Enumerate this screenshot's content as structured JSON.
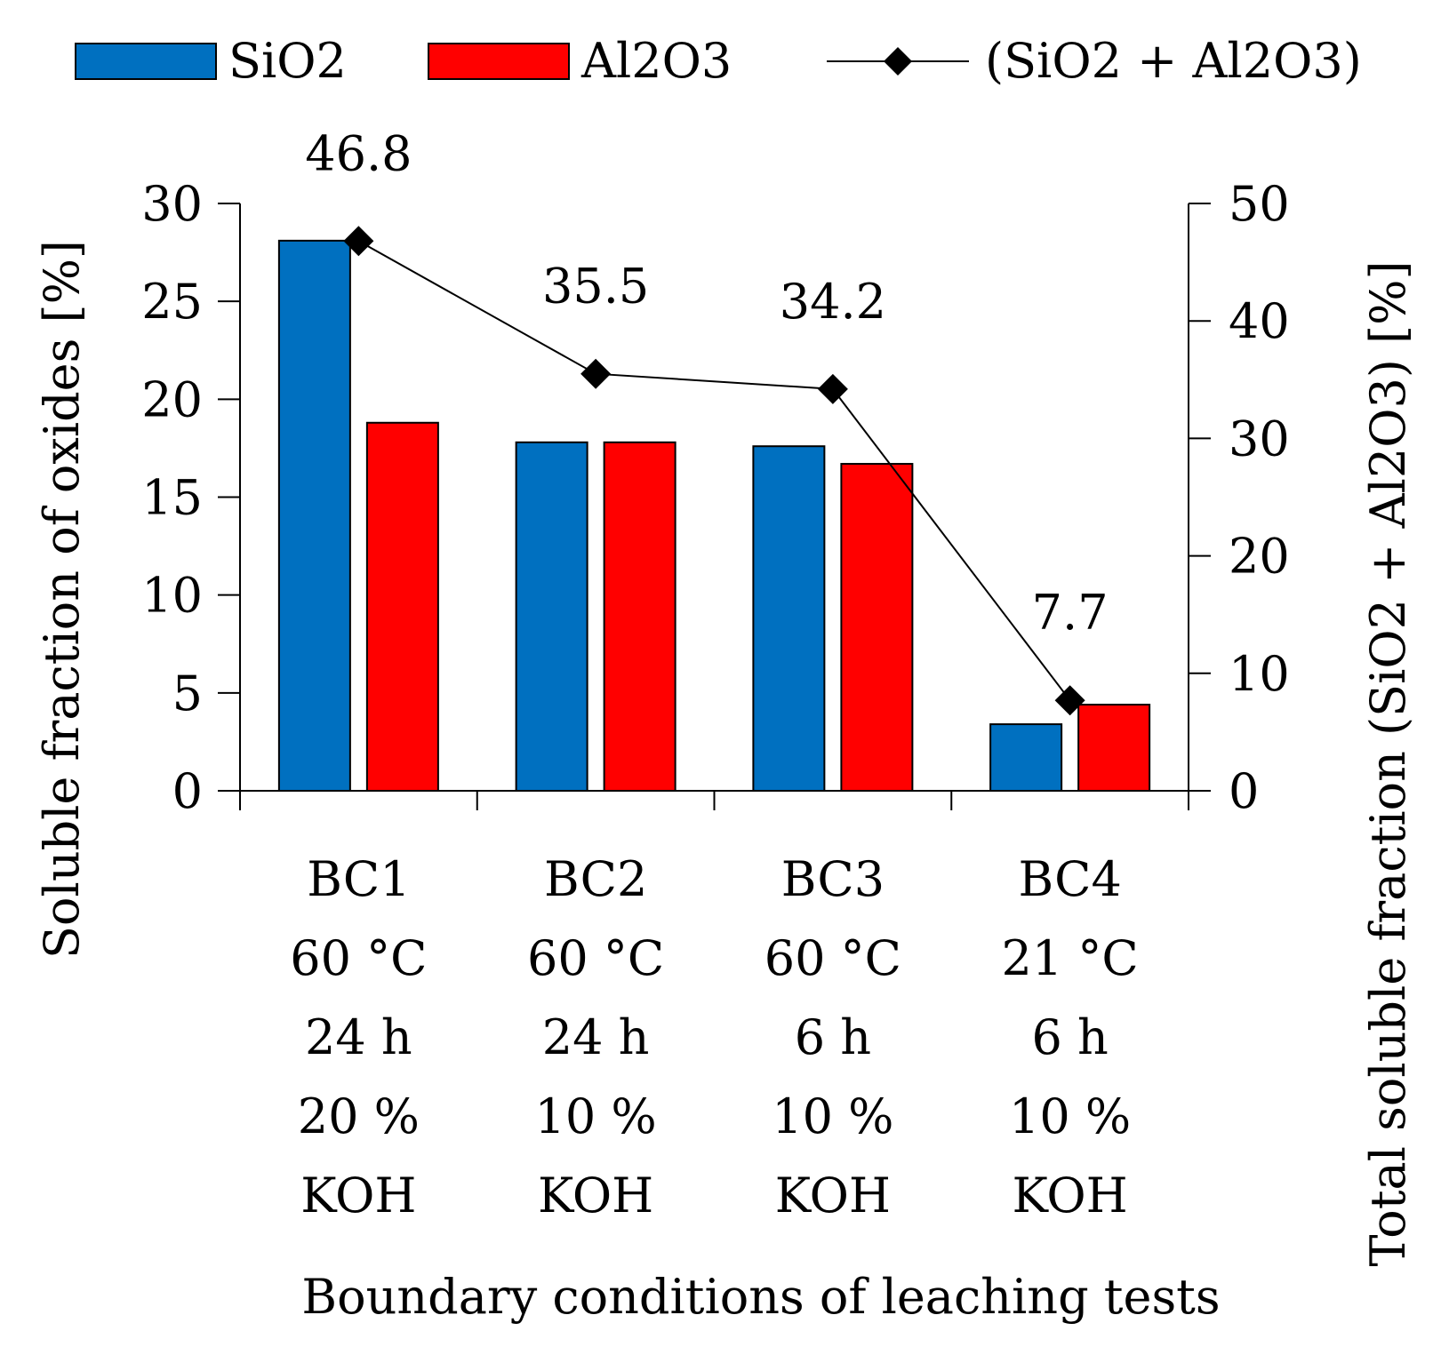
{
  "chart_data": {
    "type": "bar",
    "categories": [
      [
        "BC1",
        "60 °C",
        "24 h",
        "20 %",
        "KOH"
      ],
      [
        "BC2",
        "60 °C",
        "24 h",
        "10 %",
        "KOH"
      ],
      [
        "BC3",
        "60 °C",
        "6 h",
        "10 %",
        "KOH"
      ],
      [
        "BC4",
        "21 °C",
        "6 h",
        "10 %",
        "KOH"
      ]
    ],
    "series": [
      {
        "name": "SiO2",
        "type": "bar",
        "axis": "left",
        "color": "#0070C0",
        "values": [
          28.1,
          17.8,
          17.6,
          3.4
        ]
      },
      {
        "name": "Al2O3",
        "type": "bar",
        "axis": "left",
        "color": "#FF0000",
        "values": [
          18.8,
          17.8,
          16.7,
          4.4
        ]
      },
      {
        "name": "(SiO2 + Al2O3)",
        "type": "line",
        "axis": "right",
        "color": "#000000",
        "marker": "diamond",
        "values": [
          46.8,
          35.5,
          34.2,
          7.7
        ],
        "labels": [
          "46.8",
          "35.5",
          "34.2",
          "7.7"
        ]
      }
    ],
    "xlabel": "Boundary conditions of leaching tests",
    "ylabel": "Soluble fraction of oxides [%]",
    "y2label": "Total soluble fraction (SiO2 + Al2O3) [%]",
    "ylim": [
      0,
      30
    ],
    "yticks": [
      0,
      5,
      10,
      15,
      20,
      25,
      30
    ],
    "y2lim": [
      0,
      50
    ],
    "y2ticks": [
      0,
      10,
      20,
      30,
      40,
      50
    ],
    "legend": {
      "placement": "top",
      "entries": [
        "SiO2",
        "Al2O3",
        "(SiO2 + Al2O3)"
      ]
    },
    "grid": false
  }
}
